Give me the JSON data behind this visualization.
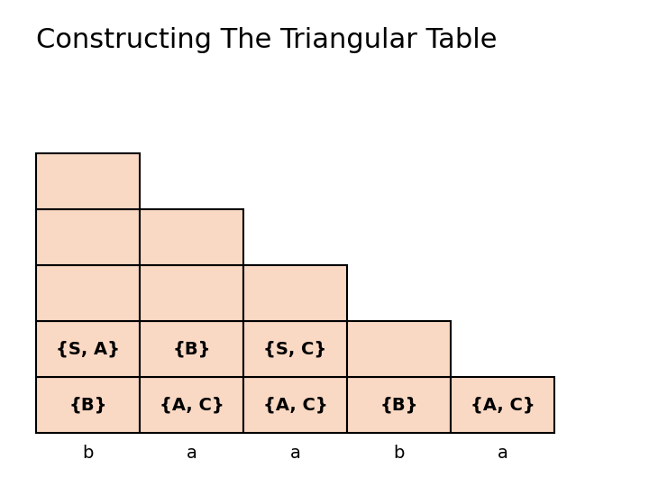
{
  "title": "Constructing The Triangular Table",
  "title_fontsize": 22,
  "cell_color": "#FAD9C4",
  "edge_color": "#000000",
  "background_color": "#ffffff",
  "col_labels": [
    "b",
    "a",
    "a",
    "b",
    "a"
  ],
  "col_label_fontsize": 14,
  "cell_text_fontsize": 14,
  "staircase_heights": [
    5,
    4,
    3,
    2,
    1
  ],
  "bottom_row_texts": [
    "{B}",
    "{A, C}",
    "{A, C}",
    "{B}",
    "{A, C}"
  ],
  "second_row_texts": [
    "{S, A}",
    "{B}",
    "{S, C}",
    "",
    ""
  ]
}
